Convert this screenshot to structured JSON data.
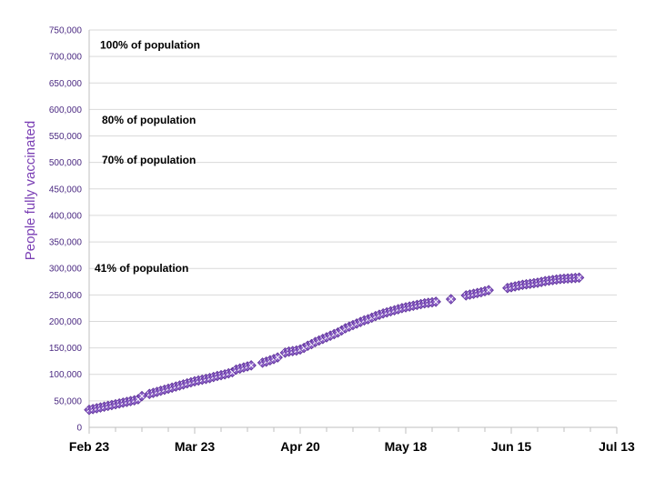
{
  "colors": {
    "series": "#8b5fc7",
    "series_stroke": "#5a2d96",
    "axis_text": "#4b2a82",
    "ylabel": "#7a3fb4",
    "grid": "#d9d9d9"
  },
  "chart_data": {
    "type": "scatter",
    "title": "",
    "ylabel": "People fully vaccinated",
    "xlabel": "",
    "ylim": [
      0,
      750000
    ],
    "xlim": [
      "2021-02-23",
      "2021-07-13"
    ],
    "grid": "horizontal",
    "legend": "none",
    "x_tick_labels": [
      "Feb 23",
      "Mar 23",
      "Apr 20",
      "May 18",
      "Jun 15",
      "Jul 13"
    ],
    "x_tick_dates": [
      "2021-02-23",
      "2021-03-23",
      "2021-04-20",
      "2021-05-18",
      "2021-06-15",
      "2021-07-13"
    ],
    "y_tick_labels": [
      "0",
      "50,000",
      "100,000",
      "150,000",
      "200,000",
      "250,000",
      "300,000",
      "350,000",
      "400,000",
      "450,000",
      "500,000",
      "550,000",
      "600,000",
      "650,000",
      "700,000",
      "750,000"
    ],
    "y_tick_values": [
      0,
      50000,
      100000,
      150000,
      200000,
      250000,
      300000,
      350000,
      400000,
      450000,
      500000,
      550000,
      600000,
      650000,
      700000,
      750000
    ],
    "annotations": [
      {
        "text": "100% of population",
        "y": 722000
      },
      {
        "text": "80% of population",
        "y": 580000
      },
      {
        "text": "70% of population",
        "y": 505000
      },
      {
        "text": "41% of population",
        "y": 300000
      }
    ],
    "series": [
      {
        "marker": "diamond-x",
        "points": [
          {
            "x": "2021-02-23",
            "y": 33000
          },
          {
            "x": "2021-02-24",
            "y": 34500
          },
          {
            "x": "2021-02-25",
            "y": 36000
          },
          {
            "x": "2021-02-26",
            "y": 37500
          },
          {
            "x": "2021-02-27",
            "y": 39000
          },
          {
            "x": "2021-02-28",
            "y": 40500
          },
          {
            "x": "2021-03-01",
            "y": 42000
          },
          {
            "x": "2021-03-02",
            "y": 43500
          },
          {
            "x": "2021-03-03",
            "y": 45000
          },
          {
            "x": "2021-03-04",
            "y": 46500
          },
          {
            "x": "2021-03-05",
            "y": 48000
          },
          {
            "x": "2021-03-06",
            "y": 49500
          },
          {
            "x": "2021-03-07",
            "y": 51000
          },
          {
            "x": "2021-03-08",
            "y": 53000
          },
          {
            "x": "2021-03-09",
            "y": 59000
          },
          {
            "x": "2021-03-11",
            "y": 63000
          },
          {
            "x": "2021-03-12",
            "y": 65000
          },
          {
            "x": "2021-03-13",
            "y": 67000
          },
          {
            "x": "2021-03-14",
            "y": 69000
          },
          {
            "x": "2021-03-15",
            "y": 71000
          },
          {
            "x": "2021-03-16",
            "y": 73000
          },
          {
            "x": "2021-03-17",
            "y": 75000
          },
          {
            "x": "2021-03-18",
            "y": 77000
          },
          {
            "x": "2021-03-19",
            "y": 79000
          },
          {
            "x": "2021-03-20",
            "y": 81000
          },
          {
            "x": "2021-03-21",
            "y": 83000
          },
          {
            "x": "2021-03-22",
            "y": 85000
          },
          {
            "x": "2021-03-23",
            "y": 87000
          },
          {
            "x": "2021-03-24",
            "y": 88500
          },
          {
            "x": "2021-03-25",
            "y": 90000
          },
          {
            "x": "2021-03-26",
            "y": 91500
          },
          {
            "x": "2021-03-27",
            "y": 93000
          },
          {
            "x": "2021-03-28",
            "y": 95000
          },
          {
            "x": "2021-03-29",
            "y": 97000
          },
          {
            "x": "2021-03-30",
            "y": 98500
          },
          {
            "x": "2021-03-31",
            "y": 100000
          },
          {
            "x": "2021-04-01",
            "y": 102000
          },
          {
            "x": "2021-04-02",
            "y": 104000
          },
          {
            "x": "2021-04-03",
            "y": 109000
          },
          {
            "x": "2021-04-04",
            "y": 111000
          },
          {
            "x": "2021-04-05",
            "y": 113000
          },
          {
            "x": "2021-04-06",
            "y": 115000
          },
          {
            "x": "2021-04-07",
            "y": 117000
          },
          {
            "x": "2021-04-10",
            "y": 122000
          },
          {
            "x": "2021-04-11",
            "y": 124000
          },
          {
            "x": "2021-04-12",
            "y": 126500
          },
          {
            "x": "2021-04-13",
            "y": 129000
          },
          {
            "x": "2021-04-14",
            "y": 132000
          },
          {
            "x": "2021-04-16",
            "y": 141000
          },
          {
            "x": "2021-04-17",
            "y": 143000
          },
          {
            "x": "2021-04-18",
            "y": 144000
          },
          {
            "x": "2021-04-19",
            "y": 145000
          },
          {
            "x": "2021-04-20",
            "y": 147000
          },
          {
            "x": "2021-04-21",
            "y": 150000
          },
          {
            "x": "2021-04-22",
            "y": 154000
          },
          {
            "x": "2021-04-23",
            "y": 157000
          },
          {
            "x": "2021-04-24",
            "y": 161000
          },
          {
            "x": "2021-04-25",
            "y": 164000
          },
          {
            "x": "2021-04-26",
            "y": 167000
          },
          {
            "x": "2021-04-27",
            "y": 170000
          },
          {
            "x": "2021-04-28",
            "y": 173000
          },
          {
            "x": "2021-04-29",
            "y": 176000
          },
          {
            "x": "2021-04-30",
            "y": 179000
          },
          {
            "x": "2021-05-01",
            "y": 183000
          },
          {
            "x": "2021-05-02",
            "y": 187000
          },
          {
            "x": "2021-05-03",
            "y": 190000
          },
          {
            "x": "2021-05-04",
            "y": 193000
          },
          {
            "x": "2021-05-05",
            "y": 196000
          },
          {
            "x": "2021-05-06",
            "y": 199000
          },
          {
            "x": "2021-05-07",
            "y": 202000
          },
          {
            "x": "2021-05-08",
            "y": 204000
          },
          {
            "x": "2021-05-09",
            "y": 207000
          },
          {
            "x": "2021-05-10",
            "y": 210000
          },
          {
            "x": "2021-05-11",
            "y": 212500
          },
          {
            "x": "2021-05-12",
            "y": 215000
          },
          {
            "x": "2021-05-13",
            "y": 217000
          },
          {
            "x": "2021-05-14",
            "y": 219000
          },
          {
            "x": "2021-05-15",
            "y": 221000
          },
          {
            "x": "2021-05-16",
            "y": 223000
          },
          {
            "x": "2021-05-17",
            "y": 225000
          },
          {
            "x": "2021-05-18",
            "y": 226500
          },
          {
            "x": "2021-05-19",
            "y": 228000
          },
          {
            "x": "2021-05-20",
            "y": 229500
          },
          {
            "x": "2021-05-21",
            "y": 231000
          },
          {
            "x": "2021-05-22",
            "y": 232500
          },
          {
            "x": "2021-05-23",
            "y": 234000
          },
          {
            "x": "2021-05-24",
            "y": 235000
          },
          {
            "x": "2021-05-25",
            "y": 236000
          },
          {
            "x": "2021-05-26",
            "y": 237000
          },
          {
            "x": "2021-05-30",
            "y": 242000
          },
          {
            "x": "2021-06-03",
            "y": 249000
          },
          {
            "x": "2021-06-04",
            "y": 250500
          },
          {
            "x": "2021-06-05",
            "y": 252000
          },
          {
            "x": "2021-06-06",
            "y": 253500
          },
          {
            "x": "2021-06-07",
            "y": 255000
          },
          {
            "x": "2021-06-08",
            "y": 257000
          },
          {
            "x": "2021-06-09",
            "y": 259000
          },
          {
            "x": "2021-06-14",
            "y": 263000
          },
          {
            "x": "2021-06-15",
            "y": 264500
          },
          {
            "x": "2021-06-16",
            "y": 266000
          },
          {
            "x": "2021-06-17",
            "y": 267500
          },
          {
            "x": "2021-06-18",
            "y": 269000
          },
          {
            "x": "2021-06-19",
            "y": 270000
          },
          {
            "x": "2021-06-20",
            "y": 271000
          },
          {
            "x": "2021-06-21",
            "y": 272000
          },
          {
            "x": "2021-06-22",
            "y": 273000
          },
          {
            "x": "2021-06-23",
            "y": 274500
          },
          {
            "x": "2021-06-24",
            "y": 276000
          },
          {
            "x": "2021-06-25",
            "y": 277000
          },
          {
            "x": "2021-06-26",
            "y": 278000
          },
          {
            "x": "2021-06-27",
            "y": 279000
          },
          {
            "x": "2021-06-28",
            "y": 280000
          },
          {
            "x": "2021-06-29",
            "y": 280500
          },
          {
            "x": "2021-06-30",
            "y": 281000
          },
          {
            "x": "2021-07-01",
            "y": 281500
          },
          {
            "x": "2021-07-02",
            "y": 282000
          },
          {
            "x": "2021-07-03",
            "y": 282500
          }
        ]
      }
    ]
  }
}
